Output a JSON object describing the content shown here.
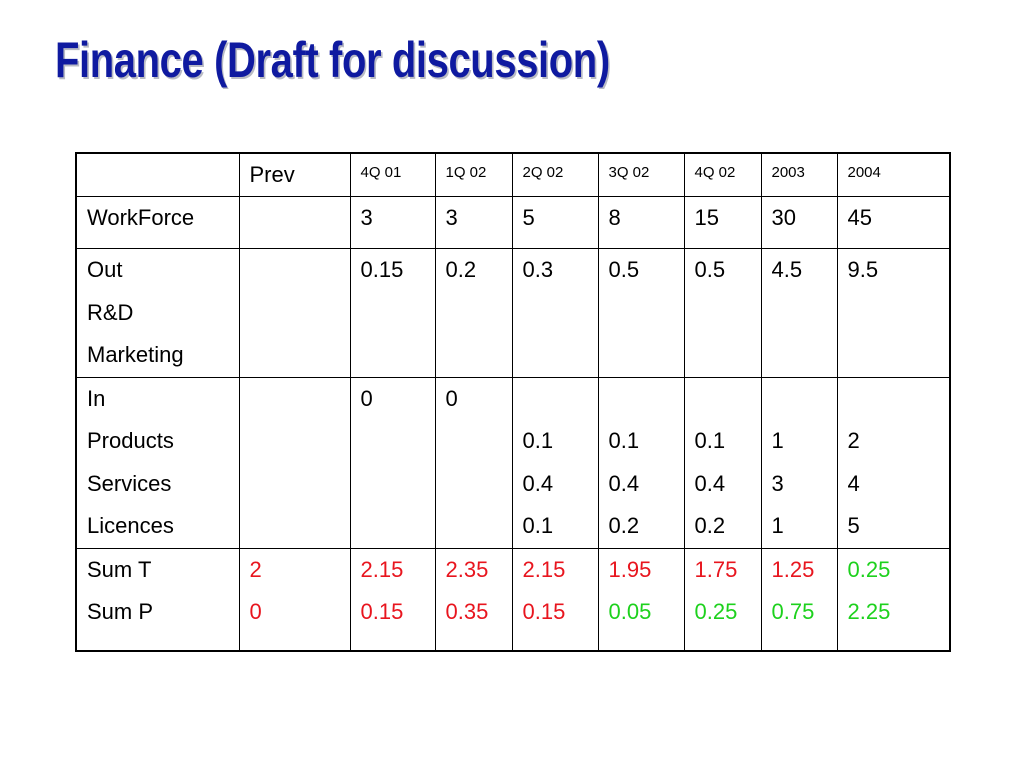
{
  "title": "Finance (Draft for discussion)",
  "colors": {
    "title": "#0f1aa0",
    "negative": "#e8151e",
    "positive": "#1dd11d"
  },
  "table": {
    "header": [
      "",
      "Prev",
      "4Q 01",
      "1Q 02",
      "2Q 02",
      "3Q 02",
      "4Q 02",
      "2003",
      "2004"
    ],
    "workforce": {
      "label": "WorkForce",
      "values": [
        "",
        "3",
        "3",
        "5",
        "8",
        "15",
        "30",
        "45"
      ]
    },
    "out": {
      "labels": [
        "Out",
        "R&D",
        "Marketing"
      ],
      "values": [
        "",
        "0.15",
        "0.2",
        "0.3",
        "0.5",
        "0.5",
        "4.5",
        "9.5"
      ]
    },
    "in": {
      "labels": [
        "In",
        "Products",
        "Services",
        "Licences"
      ],
      "columns": [
        [
          "",
          "",
          "",
          ""
        ],
        [
          "0",
          "",
          "",
          ""
        ],
        [
          "0",
          "",
          "",
          ""
        ],
        [
          "",
          "0.1",
          "0.4",
          "0.1"
        ],
        [
          "",
          "0.1",
          "0.4",
          "0.2"
        ],
        [
          "",
          "0.1",
          "0.4",
          "0.2"
        ],
        [
          "",
          "1",
          "3",
          "1"
        ],
        [
          "",
          "2",
          "4",
          "5"
        ]
      ]
    },
    "sums": {
      "labels": [
        "Sum T",
        "Sum P"
      ],
      "columns": [
        {
          "t": "2",
          "p": "0",
          "t_color": "red",
          "p_color": "red"
        },
        {
          "t": "2.15",
          "p": "0.15",
          "t_color": "red",
          "p_color": "red"
        },
        {
          "t": "2.35",
          "p": "0.35",
          "t_color": "red",
          "p_color": "red"
        },
        {
          "t": "2.15",
          "p": "0.15",
          "t_color": "red",
          "p_color": "red"
        },
        {
          "t": "1.95",
          "p": "0.05",
          "t_color": "red",
          "p_color": "green"
        },
        {
          "t": "1.75",
          "p": "0.25",
          "t_color": "red",
          "p_color": "green"
        },
        {
          "t": "1.25",
          "p": "0.75",
          "t_color": "red",
          "p_color": "green"
        },
        {
          "t": "0.25",
          "p": "2.25",
          "t_color": "green",
          "p_color": "green"
        }
      ]
    }
  }
}
